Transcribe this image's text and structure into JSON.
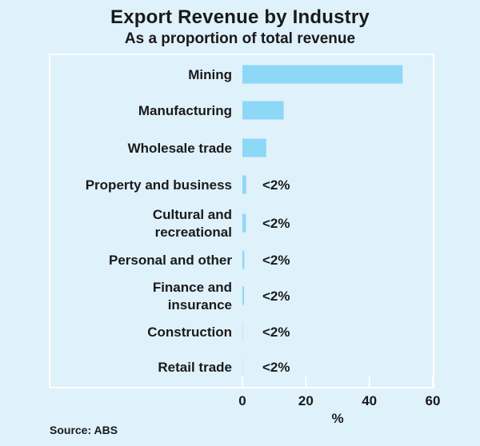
{
  "title": "Export Revenue by Industry",
  "subtitle": "As a proportion of total revenue",
  "source": "Source: ABS",
  "colors": {
    "bar": "#8dd7f7",
    "frame": "#ffffff",
    "background": "#dff1fb"
  },
  "chart_data": {
    "type": "bar",
    "orientation": "horizontal",
    "title": "Export Revenue by Industry",
    "subtitle": "As a proportion of total revenue",
    "xlabel": "%",
    "xlim": [
      0,
      60
    ],
    "xticks": [
      0,
      20,
      40,
      60
    ],
    "categories": [
      {
        "name": "Mining",
        "lines": [
          "Mining"
        ],
        "value": 50.5,
        "label": ""
      },
      {
        "name": "Manufacturing",
        "lines": [
          "Manufacturing"
        ],
        "value": 13,
        "label": ""
      },
      {
        "name": "Wholesale trade",
        "lines": [
          "Wholesale trade"
        ],
        "value": 7.5,
        "label": ""
      },
      {
        "name": "Property and business",
        "lines": [
          "Property and business"
        ],
        "value": 1.2,
        "label": "<2%"
      },
      {
        "name": "Cultural and recreational",
        "lines": [
          "Cultural and",
          "recreational"
        ],
        "value": 1.1,
        "label": "<2%"
      },
      {
        "name": "Personal and other",
        "lines": [
          "Personal and other"
        ],
        "value": 0.6,
        "label": "<2%"
      },
      {
        "name": "Finance and insurance",
        "lines": [
          "Finance and",
          "insurance"
        ],
        "value": 0.5,
        "label": "<2%"
      },
      {
        "name": "Construction",
        "lines": [
          "Construction"
        ],
        "value": 0.1,
        "label": "<2%"
      },
      {
        "name": "Retail trade",
        "lines": [
          "Retail trade"
        ],
        "value": 0.05,
        "label": "<2%"
      }
    ]
  }
}
